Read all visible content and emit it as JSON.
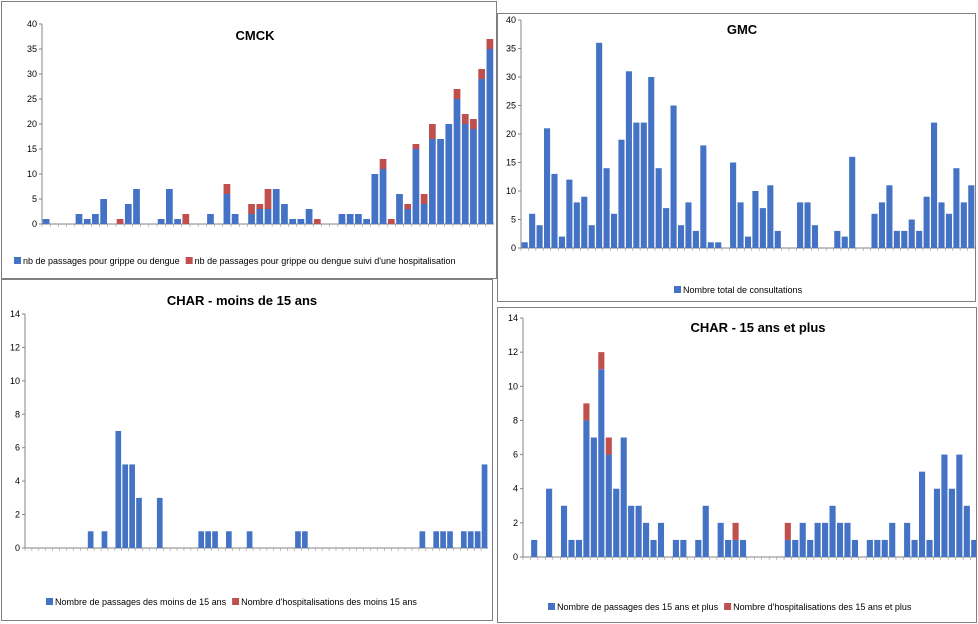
{
  "colors": {
    "primary": "#4472C4",
    "secondary": "#C0504D",
    "axis": "#868686",
    "border": "#7F7F7F"
  },
  "chart_data": [
    {
      "id": "cmck",
      "type": "bar",
      "stacked": true,
      "title": "CMCK",
      "ylim": [
        0,
        40
      ],
      "yticks": [
        0,
        5,
        10,
        15,
        20,
        25,
        30,
        35,
        40
      ],
      "grid": false,
      "legend_position": "bottom",
      "series": [
        {
          "name": "nb de passages pour grippe ou dengue",
          "values": [
            1,
            0,
            0,
            0,
            2,
            1,
            2,
            5,
            0,
            0,
            4,
            7,
            0,
            0,
            1,
            7,
            1,
            0,
            0,
            0,
            2,
            0,
            6,
            2,
            0,
            2,
            3,
            3,
            7,
            4,
            1,
            1,
            3,
            0,
            0,
            0,
            2,
            2,
            2,
            1,
            10,
            11,
            0,
            6,
            3,
            15,
            4,
            17,
            17,
            20,
            25,
            20,
            19,
            29,
            35
          ]
        },
        {
          "name": "nb de passages pour grippe ou dengue suivi d'une hospitalisation",
          "values": [
            0,
            0,
            0,
            0,
            0,
            0,
            0,
            0,
            0,
            1,
            0,
            0,
            0,
            0,
            0,
            0,
            0,
            2,
            0,
            0,
            0,
            0,
            2,
            0,
            0,
            2,
            1,
            4,
            0,
            0,
            0,
            0,
            0,
            1,
            0,
            0,
            0,
            0,
            0,
            0,
            0,
            2,
            1,
            0,
            1,
            1,
            2,
            3,
            0,
            0,
            2,
            2,
            2,
            2,
            2
          ]
        }
      ]
    },
    {
      "id": "gmc",
      "type": "bar",
      "stacked": false,
      "title": "GMC",
      "ylim": [
        0,
        40
      ],
      "yticks": [
        0,
        5,
        10,
        15,
        20,
        25,
        30,
        35,
        40
      ],
      "grid": false,
      "legend_position": "bottom",
      "series": [
        {
          "name": "Nombre total de consultations",
          "values": [
            1,
            6,
            4,
            21,
            13,
            2,
            12,
            8,
            9,
            4,
            36,
            14,
            6,
            19,
            31,
            22,
            22,
            30,
            14,
            7,
            25,
            4,
            8,
            3,
            18,
            1,
            1,
            0,
            15,
            8,
            2,
            10,
            7,
            11,
            3,
            0,
            0,
            8,
            8,
            4,
            0,
            0,
            3,
            2,
            16,
            0,
            0,
            6,
            8,
            11,
            3,
            3,
            5,
            3,
            9,
            22,
            8,
            6,
            14,
            8,
            11
          ]
        }
      ]
    },
    {
      "id": "char_moins15",
      "type": "bar",
      "stacked": true,
      "title": "CHAR - moins de 15 ans",
      "ylim": [
        0,
        14
      ],
      "yticks": [
        0,
        2,
        4,
        6,
        8,
        10,
        12,
        14
      ],
      "grid": false,
      "legend_position": "bottom",
      "series": [
        {
          "name": "Nombre de  passages des  moins de 15 ans",
          "values": [
            0,
            0,
            0,
            0,
            0,
            0,
            0,
            0,
            0,
            1,
            0,
            1,
            0,
            7,
            5,
            5,
            3,
            0,
            0,
            3,
            0,
            0,
            0,
            0,
            0,
            1,
            1,
            1,
            0,
            1,
            0,
            0,
            1,
            0,
            0,
            0,
            0,
            0,
            0,
            1,
            1,
            0,
            0,
            0,
            0,
            0,
            0,
            0,
            0,
            0,
            0,
            0,
            0,
            0,
            0,
            0,
            0,
            1,
            0,
            1,
            1,
            1,
            0,
            1,
            1,
            1,
            5
          ]
        },
        {
          "name": "Nombre d'hospitalisations des moins 15 ans",
          "values": [
            0,
            0,
            0,
            0,
            0,
            0,
            0,
            0,
            0,
            0,
            0,
            0,
            0,
            0,
            0,
            0,
            0,
            0,
            0,
            0,
            0,
            0,
            0,
            0,
            0,
            0,
            0,
            0,
            0,
            0,
            0,
            0,
            0,
            0,
            0,
            0,
            0,
            0,
            0,
            0,
            0,
            0,
            0,
            0,
            0,
            0,
            0,
            0,
            0,
            0,
            0,
            0,
            0,
            0,
            0,
            0,
            0,
            0,
            0,
            0,
            0,
            0,
            0,
            0,
            0,
            0,
            0
          ]
        }
      ]
    },
    {
      "id": "char_15plus",
      "type": "bar",
      "stacked": true,
      "title": "CHAR - 15 ans et plus",
      "ylim": [
        0,
        14
      ],
      "yticks": [
        0,
        2,
        4,
        6,
        8,
        10,
        12,
        14
      ],
      "grid": false,
      "legend_position": "bottom",
      "series": [
        {
          "name": "Nombre de passages des 15 ans et plus",
          "values": [
            0,
            1,
            0,
            4,
            0,
            3,
            1,
            1,
            8,
            7,
            11,
            6,
            4,
            7,
            3,
            3,
            2,
            1,
            2,
            0,
            1,
            1,
            0,
            1,
            3,
            0,
            2,
            1,
            1,
            1,
            0,
            0,
            0,
            0,
            0,
            1,
            1,
            2,
            1,
            2,
            2,
            3,
            2,
            2,
            1,
            0,
            1,
            1,
            1,
            2,
            0,
            2,
            1,
            5,
            1,
            4,
            6,
            4,
            6,
            3,
            1
          ]
        },
        {
          "name": "Nombre d'hospitalisations des 15 ans et plus",
          "values": [
            0,
            0,
            0,
            0,
            0,
            0,
            0,
            0,
            1,
            0,
            1,
            1,
            0,
            0,
            0,
            0,
            0,
            0,
            0,
            0,
            0,
            0,
            0,
            0,
            0,
            0,
            0,
            0,
            1,
            0,
            0,
            0,
            0,
            0,
            0,
            1,
            0,
            0,
            0,
            0,
            0,
            0,
            0,
            0,
            0,
            0,
            0,
            0,
            0,
            0,
            0,
            0,
            0,
            0,
            0,
            0,
            0,
            0,
            0,
            0,
            0
          ]
        }
      ]
    }
  ]
}
